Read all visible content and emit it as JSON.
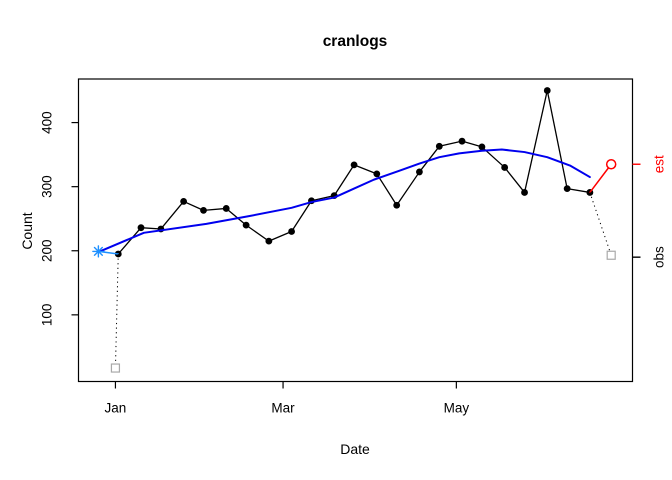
{
  "page": {
    "background": "#FFFFFF"
  },
  "chart": {
    "title": "cranlogs",
    "xlabel": "Date",
    "ylabel": "Count"
  },
  "chart_data": {
    "type": "line",
    "title": "cranlogs",
    "xlabel": "Date",
    "ylabel": "Count",
    "x_unit": "day offset from Jan 1",
    "x_domain": [
      -13,
      182
    ],
    "y_domain": [
      -4,
      468
    ],
    "grid": false,
    "legend_position": "none",
    "x_ticks": [
      {
        "offset": 0,
        "label": "Jan"
      },
      {
        "offset": 59,
        "label": "Mar"
      },
      {
        "offset": 120,
        "label": "May"
      }
    ],
    "y_ticks": [
      100,
      200,
      300,
      400
    ],
    "series": [
      {
        "name": "observed-weekly-count",
        "type": "line-points",
        "color": "#000000",
        "marker": "filled-circle",
        "dates": [
          "Jan 2",
          "Jan 10",
          "Jan 17",
          "Jan 25",
          "Feb 1",
          "Feb 9",
          "Feb 16",
          "Feb 24",
          "Mar 4",
          "Mar 11",
          "Mar 19",
          "Mar 26",
          "Apr 3",
          "Apr 10",
          "Apr 18",
          "Apr 25",
          "May 3",
          "May 10",
          "May 18",
          "May 25",
          "Jun 2",
          "Jun 9",
          "Jun 17"
        ],
        "x": [
          1,
          9,
          16,
          24,
          31,
          39,
          46,
          54,
          62,
          69,
          77,
          84,
          92,
          99,
          107,
          114,
          122,
          129,
          137,
          144,
          152,
          159,
          167
        ],
        "y": [
          195,
          236,
          234,
          277,
          263,
          266,
          240,
          215,
          230,
          278,
          286,
          334,
          320,
          271,
          323,
          363,
          371,
          362,
          330,
          291,
          450,
          297,
          291
        ]
      },
      {
        "name": "smooth-trend",
        "type": "line",
        "color": "#0000EE",
        "width": 2,
        "x": [
          -6,
          10,
          32,
          47,
          62,
          69,
          77,
          84,
          91,
          100,
          107,
          114,
          121,
          129,
          136,
          144,
          152,
          160,
          167
        ],
        "y": [
          198,
          228,
          242,
          254,
          267,
          276,
          283,
          297,
          311,
          325,
          336,
          346,
          352,
          356,
          358,
          354,
          346,
          333,
          315
        ]
      },
      {
        "name": "start-adjust-segment",
        "type": "line",
        "color": "#1E90FF",
        "width": 1.5,
        "x": [
          -6,
          1
        ],
        "y": [
          199,
          195
        ]
      },
      {
        "name": "end-estimate-segment",
        "type": "line",
        "color": "#FF0000",
        "width": 1.5,
        "x": [
          167,
          174.5
        ],
        "y": [
          291,
          335
        ]
      },
      {
        "name": "dotted-first-obs-connector",
        "type": "dotted-line",
        "color": "#000000",
        "width": 1,
        "x": [
          1,
          0
        ],
        "y": [
          195,
          17
        ]
      },
      {
        "name": "dotted-last-obs-connector",
        "type": "dotted-line",
        "color": "#000000",
        "width": 1,
        "x": [
          167,
          174.5
        ],
        "y": [
          291,
          193
        ]
      }
    ],
    "points": [
      {
        "name": "start-estimate-star",
        "marker": "asterisk",
        "color": "#1E90FF",
        "x": -6,
        "y": 199
      },
      {
        "name": "first-obs-square",
        "marker": "open-square",
        "color": "#A9A9A9",
        "x": 0,
        "y": 17
      },
      {
        "name": "last-obs-square",
        "marker": "open-square",
        "color": "#A9A9A9",
        "x": 174.5,
        "y": 193
      },
      {
        "name": "last-estimate-circle",
        "marker": "open-circle",
        "color": "#FF0000",
        "x": 174.5,
        "y": 335
      }
    ],
    "right_axis_labels": [
      {
        "text": "est",
        "color": "#FF0000",
        "value": 335
      },
      {
        "text": "obs",
        "color": "#000000",
        "value": 190
      }
    ]
  }
}
